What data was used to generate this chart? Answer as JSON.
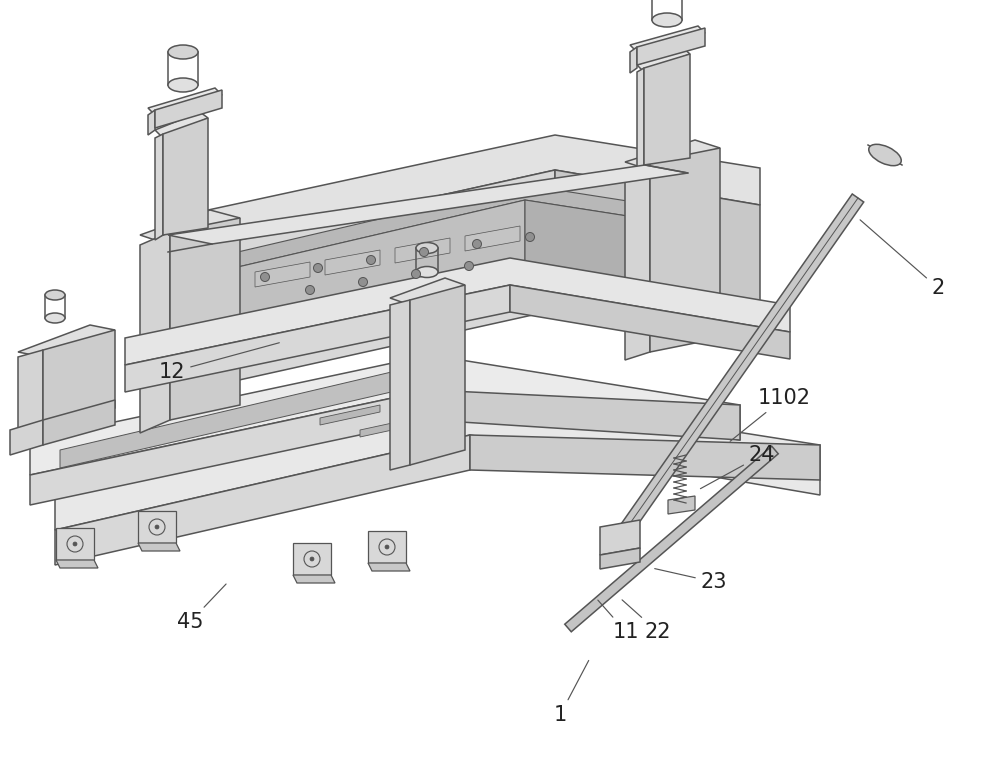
{
  "bg_color": "#ffffff",
  "line_color": "#555555",
  "figsize": [
    10.0,
    7.77
  ],
  "dpi": 100,
  "label_fontsize": 15
}
